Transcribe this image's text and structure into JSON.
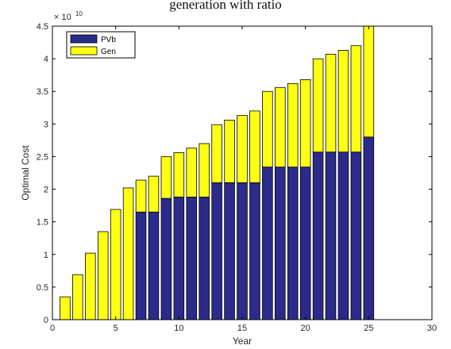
{
  "window": {
    "title_fragment": "generation with ratio"
  },
  "chart_data": {
    "type": "bar",
    "stacked": true,
    "title": "",
    "xlabel": "Year",
    "ylabel": "Optimal Cost",
    "y_exponent_label": "× 10",
    "y_exponent_power": "10",
    "xlim": [
      0,
      30
    ],
    "ylim": [
      0,
      4.5
    ],
    "xticks": [
      "0",
      "5",
      "10",
      "15",
      "20",
      "25",
      "30"
    ],
    "yticks": [
      "0",
      "0.5",
      "1",
      "1.5",
      "2",
      "2.5",
      "3",
      "3.5",
      "4",
      "4.5"
    ],
    "grid": false,
    "legend_position": "top-left",
    "legend": [
      "PVb",
      "Gen"
    ],
    "colors": {
      "PVb": "#2b2b8c",
      "Gen": "#ffff14"
    },
    "x": [
      1,
      2,
      3,
      4,
      5,
      6,
      7,
      8,
      9,
      10,
      11,
      12,
      13,
      14,
      15,
      16,
      17,
      18,
      19,
      20,
      21,
      22,
      23,
      24,
      25
    ],
    "series": [
      {
        "name": "PVb",
        "values": [
          0,
          0,
          0,
          0,
          0,
          0,
          1.65,
          1.65,
          1.86,
          1.88,
          1.88,
          1.88,
          2.1,
          2.1,
          2.1,
          2.1,
          2.34,
          2.34,
          2.34,
          2.34,
          2.57,
          2.57,
          2.57,
          2.57,
          2.8
        ]
      },
      {
        "name": "Gen",
        "values": [
          0.35,
          0.69,
          1.02,
          1.35,
          1.69,
          2.02,
          0.49,
          0.55,
          0.64,
          0.68,
          0.75,
          0.82,
          0.89,
          0.96,
          1.03,
          1.1,
          1.16,
          1.22,
          1.28,
          1.34,
          1.43,
          1.5,
          1.56,
          1.63,
          1.75
        ]
      }
    ]
  }
}
